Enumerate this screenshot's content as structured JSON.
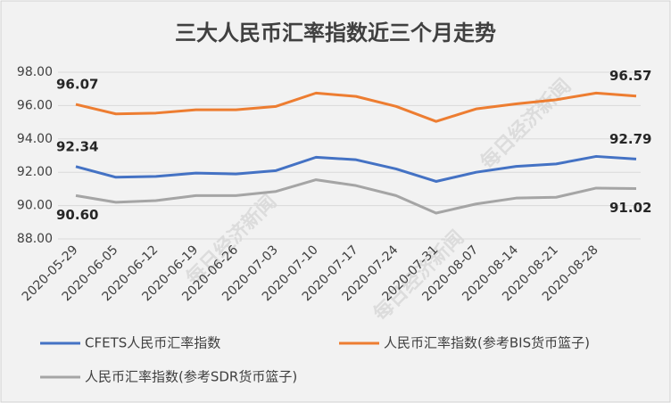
{
  "chart_data": {
    "type": "line",
    "title": "三大人民币汇率指数近三个月走势",
    "watermark": "每日经济新闻",
    "categories": [
      "2020-05-29",
      "2020-06-05",
      "2020-06-12",
      "2020-06-19",
      "2020-06-26",
      "2020-07-03",
      "2020-07-10",
      "2020-07-17",
      "2020-07-24",
      "2020-07-31",
      "2020-08-07",
      "2020-08-14",
      "2020-08-21",
      "2020-08-28",
      null
    ],
    "series": [
      {
        "name": "CFETS人民币汇率指数",
        "color": "#4472c4",
        "values": [
          92.34,
          91.7,
          91.75,
          91.95,
          91.9,
          92.1,
          92.9,
          92.75,
          92.2,
          91.45,
          92.0,
          92.35,
          92.5,
          92.95,
          92.79
        ],
        "value_labels": [
          "92.34",
          null,
          null,
          null,
          null,
          null,
          null,
          null,
          null,
          null,
          null,
          null,
          null,
          null,
          "92.79"
        ]
      },
      {
        "name": "人民币汇率指数(参考BIS货币篮子)",
        "color": "#ed7d31",
        "values": [
          96.07,
          95.5,
          95.55,
          95.75,
          95.75,
          95.95,
          96.75,
          96.55,
          95.95,
          95.05,
          95.8,
          96.1,
          96.35,
          96.75,
          96.57
        ],
        "value_labels": [
          "96.07",
          null,
          null,
          null,
          null,
          null,
          null,
          null,
          null,
          null,
          null,
          null,
          null,
          null,
          "96.57"
        ]
      },
      {
        "name": "人民币汇率指数(参考SDR货币篮子)",
        "color": "#a5a5a5",
        "values": [
          90.6,
          90.2,
          90.3,
          90.6,
          90.6,
          90.85,
          91.55,
          91.2,
          90.6,
          89.55,
          90.1,
          90.45,
          90.5,
          91.05,
          91.02
        ],
        "value_labels": [
          "90.60",
          null,
          null,
          null,
          null,
          null,
          null,
          null,
          null,
          null,
          null,
          null,
          null,
          null,
          "91.02"
        ]
      }
    ],
    "ylim": [
      88,
      98
    ],
    "yticks": [
      {
        "value": 88,
        "label": "88.00"
      },
      {
        "value": 90,
        "label": "90.00"
      },
      {
        "value": 92,
        "label": "92.00"
      },
      {
        "value": 94,
        "label": "94.00"
      },
      {
        "value": 96,
        "label": "96.00"
      },
      {
        "value": 98,
        "label": "98.00"
      }
    ],
    "grid": true,
    "legend": "bottom"
  }
}
